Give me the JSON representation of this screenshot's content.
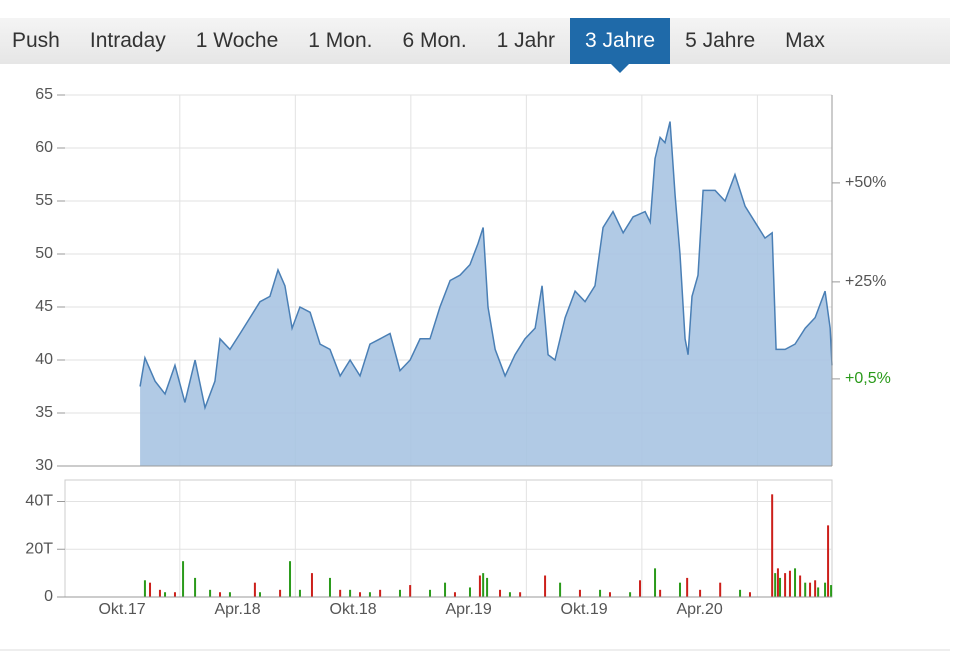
{
  "tabs": [
    "Push",
    "Intraday",
    "1 Woche",
    "1 Mon.",
    "6 Mon.",
    "1 Jahr",
    "3 Jahre",
    "5 Jahre",
    "Max"
  ],
  "active_tab": 6,
  "chart_data": [
    {
      "type": "area",
      "color": "#4a7fb5",
      "fill": "#a9c4e2",
      "x": [
        2017.828,
        2017.849,
        2017.893,
        2017.936,
        2017.979,
        2018.022,
        2018.066,
        2018.109,
        2018.152,
        2018.174,
        2018.217,
        2018.261,
        2018.304,
        2018.347,
        2018.39,
        2018.425,
        2018.455,
        2018.486,
        2018.52,
        2018.564,
        2018.607,
        2018.65,
        2018.694,
        2018.737,
        2018.78,
        2018.823,
        2018.867,
        2018.91,
        2018.953,
        2018.997,
        2019.04,
        2019.083,
        2019.126,
        2019.17,
        2019.213,
        2019.256,
        2019.291,
        2019.313,
        2019.334,
        2019.365,
        2019.408,
        2019.451,
        2019.494,
        2019.538,
        2019.568,
        2019.594,
        2019.624,
        2019.668,
        2019.711,
        2019.754,
        2019.797,
        2019.832,
        2019.875,
        2019.919,
        2019.962,
        2020.014,
        2020.036,
        2020.057,
        2020.079,
        2020.1,
        2020.122,
        2020.144,
        2020.165,
        2020.187,
        2020.2,
        2020.217,
        2020.243,
        2020.265,
        2020.317,
        2020.36,
        2020.403,
        2020.447,
        2020.49,
        2020.533,
        2020.564,
        2020.581,
        2020.62,
        2020.663,
        2020.707,
        2020.75,
        2020.793,
        2020.815,
        2020.823
      ],
      "values": [
        37.5,
        40.2,
        38,
        36.8,
        39.5,
        36,
        40,
        35.5,
        38,
        42,
        41,
        42.5,
        44,
        45.5,
        46,
        48.5,
        47,
        43,
        45,
        44.5,
        41.5,
        41,
        38.5,
        40,
        38.5,
        41.5,
        42,
        42.5,
        39,
        40,
        42,
        42,
        45,
        47.5,
        48,
        49,
        51,
        52.5,
        45,
        41,
        38.5,
        40.5,
        42,
        43,
        47,
        40.5,
        40,
        44,
        46.5,
        45.5,
        47,
        52.5,
        54,
        52,
        53.5,
        54,
        53,
        59,
        61,
        60.5,
        62.5,
        55.5,
        50,
        42,
        40.5,
        46,
        48,
        56,
        56,
        55,
        57.5,
        54.5,
        53,
        51.5,
        52,
        41,
        41,
        41.5,
        43,
        44,
        46.5,
        43,
        39.5
      ],
      "xlim": [
        2017.503,
        2020.823
      ],
      "xticks": [
        {
          "value": 2017.75,
          "label": "Okt.17"
        },
        {
          "value": 2018.25,
          "label": "Apr.18"
        },
        {
          "value": 2018.75,
          "label": "Okt.18"
        },
        {
          "value": 2019.25,
          "label": "Apr.19"
        },
        {
          "value": 2019.75,
          "label": "Okt.19"
        },
        {
          "value": 2020.25,
          "label": "Apr.20"
        }
      ],
      "xgrid": [
        2018.0,
        2018.5,
        2019.0,
        2019.5,
        2020.0,
        2020.5
      ],
      "ylim": [
        30,
        65
      ],
      "yticks": [
        30,
        35,
        40,
        45,
        50,
        55,
        60,
        65
      ],
      "y2lim": [
        -21.5,
        72.2
      ],
      "y2ticks": [
        {
          "value": 50,
          "label": "+50%"
        },
        {
          "value": 25,
          "label": "+25%"
        }
      ],
      "change_label": {
        "value": 0.5,
        "label": "+0,5%",
        "color": "#2a9a1a"
      },
      "grid": true
    },
    {
      "type": "bar",
      "series": [
        {
          "color": "#2a9a1a",
          "x": [
            2017.849,
            2017.936,
            2018.014,
            2018.066,
            2018.131,
            2018.217,
            2018.347,
            2018.477,
            2018.52,
            2018.65,
            2018.737,
            2018.823,
            2018.953,
            2019.083,
            2019.148,
            2019.256,
            2019.313,
            2019.33,
            2019.429,
            2019.646,
            2019.819,
            2019.949,
            2020.057,
            2020.165,
            2020.425,
            2020.577,
            2020.598,
            2020.663,
            2020.707,
            2020.763,
            2020.793,
            2020.819
          ],
          "values": [
            7,
            2,
            15,
            8,
            3,
            2,
            2,
            15,
            3,
            8,
            3,
            2,
            3,
            3,
            6,
            4,
            10,
            8,
            2,
            6,
            3,
            2,
            12,
            6,
            3,
            10,
            8,
            12,
            6,
            4,
            6,
            5
          ]
        },
        {
          "color": "#cc1f1a",
          "x": [
            2017.871,
            2017.914,
            2017.979,
            2018.174,
            2018.325,
            2018.434,
            2018.572,
            2018.694,
            2018.78,
            2018.867,
            2018.997,
            2019.191,
            2019.299,
            2019.386,
            2019.473,
            2019.581,
            2019.732,
            2019.862,
            2019.992,
            2020.079,
            2020.196,
            2020.252,
            2020.339,
            2020.468,
            2020.564,
            2020.589,
            2020.62,
            2020.641,
            2020.685,
            2020.728,
            2020.75,
            2020.806
          ],
          "values": [
            6,
            3,
            2,
            2,
            6,
            3,
            10,
            3,
            2,
            3,
            5,
            2,
            9,
            3,
            2,
            9,
            3,
            2,
            7,
            3,
            8,
            3,
            6,
            2,
            43,
            12,
            10,
            11,
            9,
            6,
            7,
            30
          ]
        }
      ],
      "xlim": [
        2017.503,
        2020.823
      ],
      "ylim": [
        0,
        49
      ],
      "yticks": [
        0,
        {
          "value": 20,
          "label": "20T"
        },
        {
          "value": 40,
          "label": "40T"
        }
      ],
      "grid": true
    }
  ]
}
